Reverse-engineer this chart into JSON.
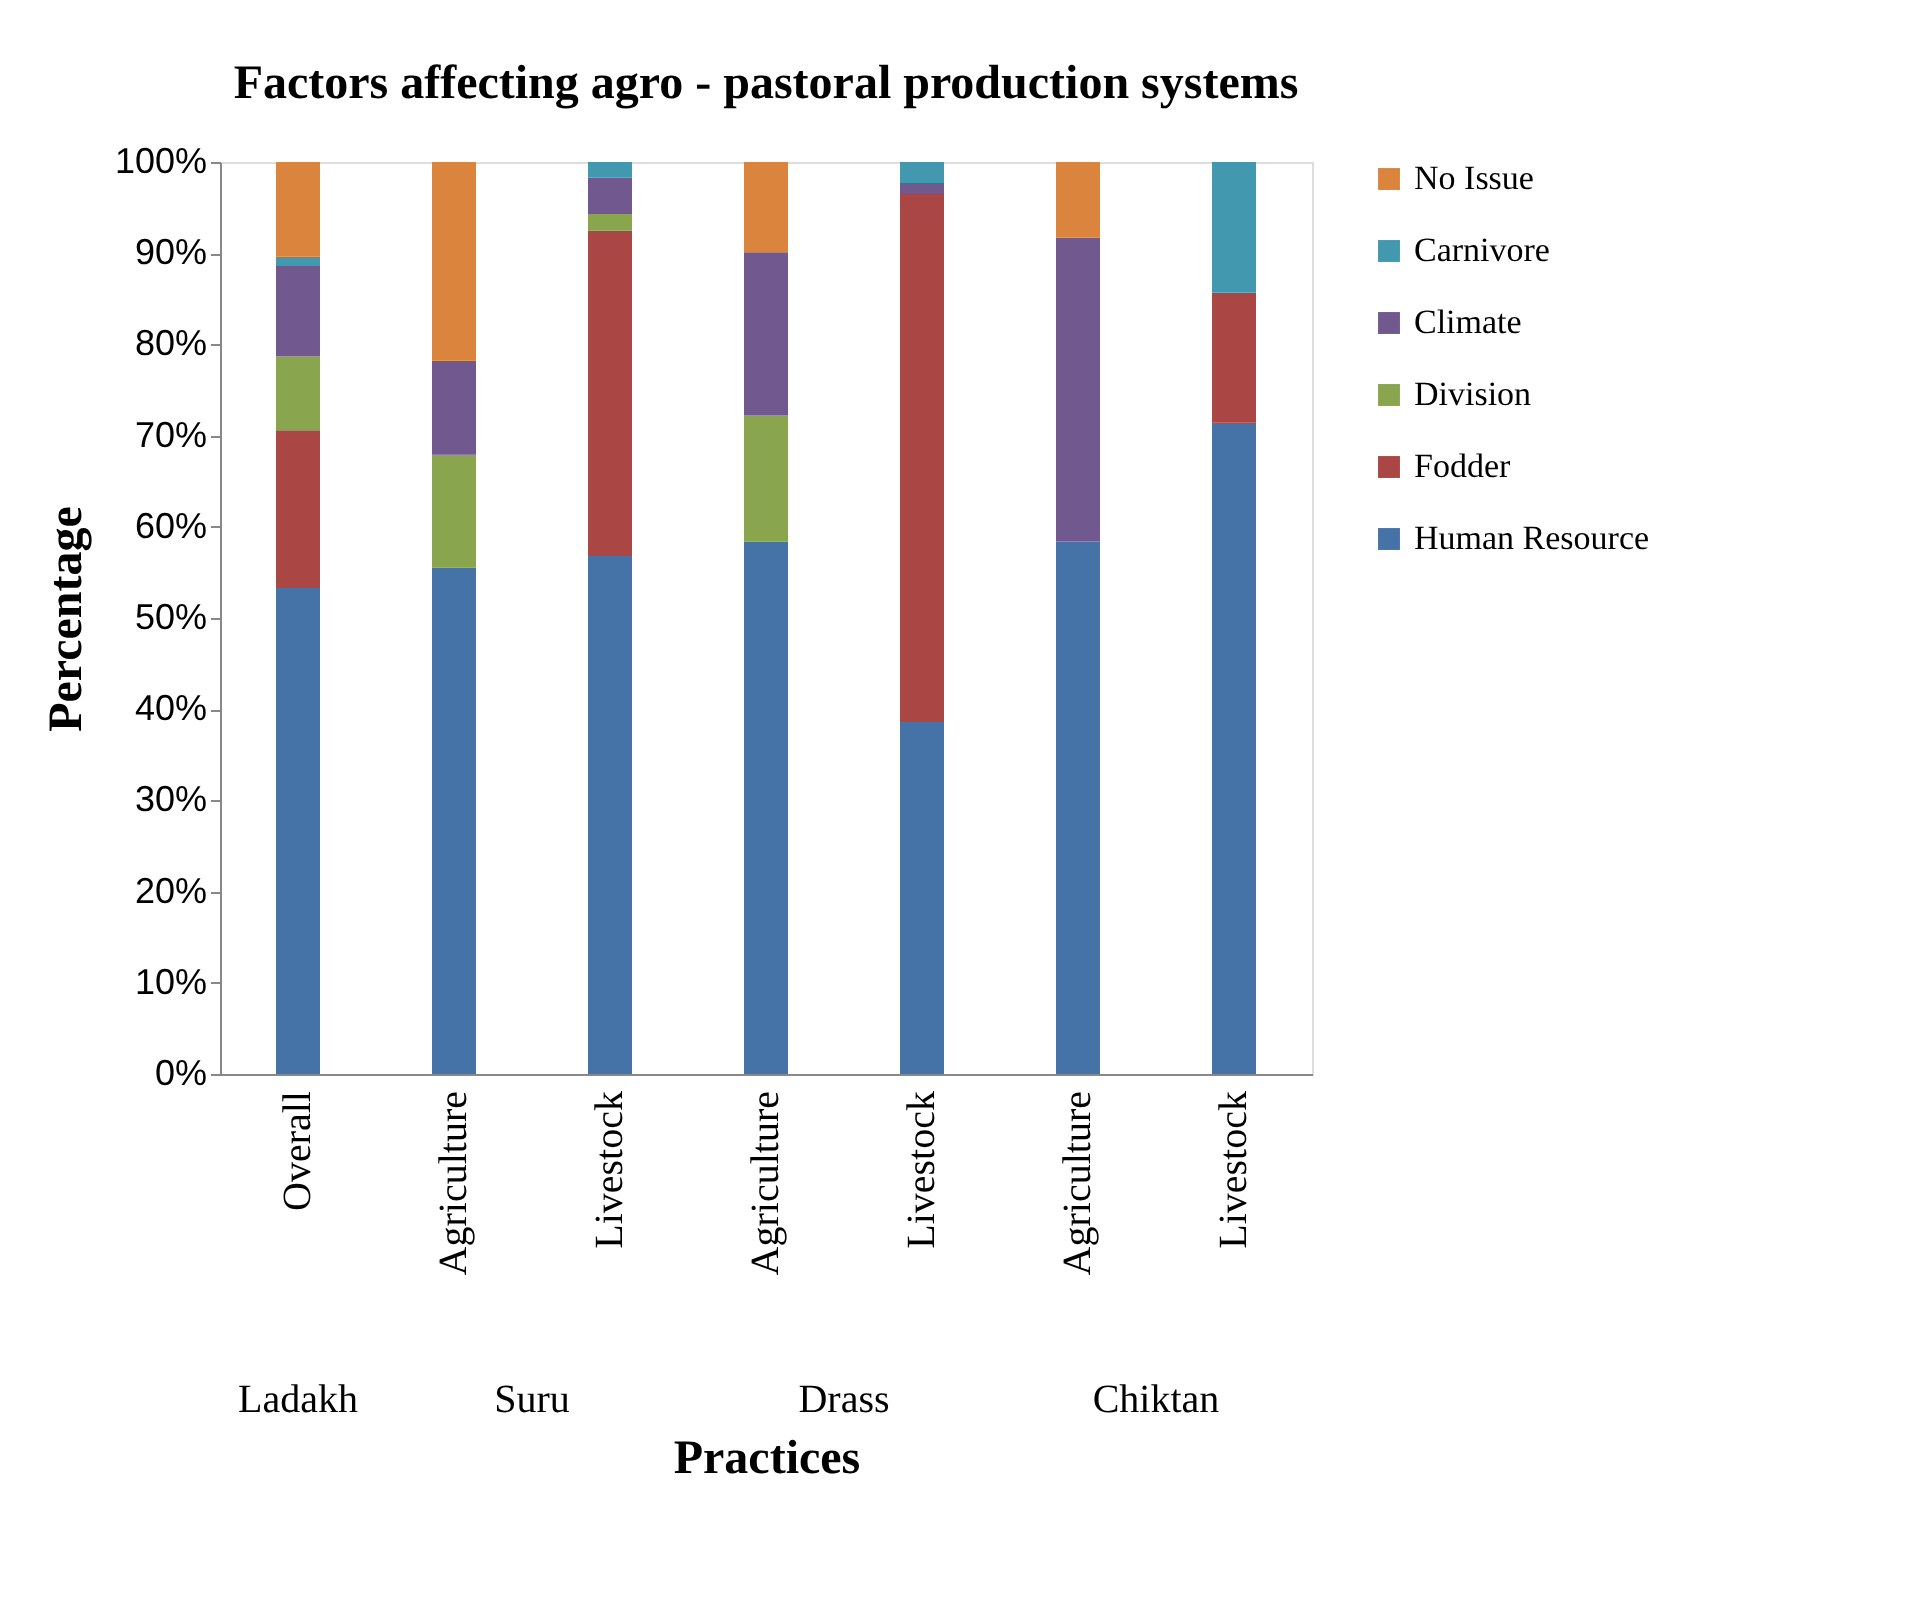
{
  "chart_data": {
    "type": "bar",
    "stacked": true,
    "title": "Factors affecting agro - pastoral production systems",
    "xlabel": "Practices",
    "ylabel": "Percentage",
    "categories": [
      "Overall",
      "Agriculture",
      "Livestock",
      "Agriculture",
      "Livestock",
      "Agriculture",
      "Livestock"
    ],
    "annotations": [
      "Ladakh",
      "Suru",
      "Drass",
      "Chiktan"
    ],
    "series": [
      {
        "name": "Human Resource",
        "color": "#4572a7",
        "values": [
          53.3,
          55.5,
          56.8,
          58.4,
          38.6,
          58.4,
          71.4
        ]
      },
      {
        "name": "Fodder",
        "color": "#aa4643",
        "values": [
          17.3,
          0,
          35.7,
          0,
          58.0,
          0,
          14.3
        ]
      },
      {
        "name": "Division",
        "color": "#89a54e",
        "values": [
          8.1,
          12.4,
          1.8,
          13.8,
          0,
          0,
          0
        ]
      },
      {
        "name": "Climate",
        "color": "#71588f",
        "values": [
          9.9,
          10.3,
          4.0,
          17.9,
          1.1,
          33.3,
          0
        ]
      },
      {
        "name": "Carnivore",
        "color": "#4198af",
        "values": [
          1.0,
          0,
          1.7,
          0,
          2.3,
          0,
          14.3
        ]
      },
      {
        "name": "No Issue",
        "color": "#db843d",
        "values": [
          10.4,
          21.8,
          0,
          9.9,
          0,
          8.3,
          0
        ]
      }
    ],
    "ylim": [
      0,
      100
    ],
    "yticks": [
      {
        "value": 0,
        "label": "0%"
      },
      {
        "value": 10,
        "label": "10%"
      },
      {
        "value": 20,
        "label": "20%"
      },
      {
        "value": 30,
        "label": "30%"
      },
      {
        "value": 40,
        "label": "40%"
      },
      {
        "value": 50,
        "label": "50%"
      },
      {
        "value": 60,
        "label": "60%"
      },
      {
        "value": 70,
        "label": "70%"
      },
      {
        "value": 80,
        "label": "80%"
      },
      {
        "value": 90,
        "label": "90%"
      },
      {
        "value": 100,
        "label": "100%"
      }
    ],
    "grid": false,
    "legend": "right"
  }
}
